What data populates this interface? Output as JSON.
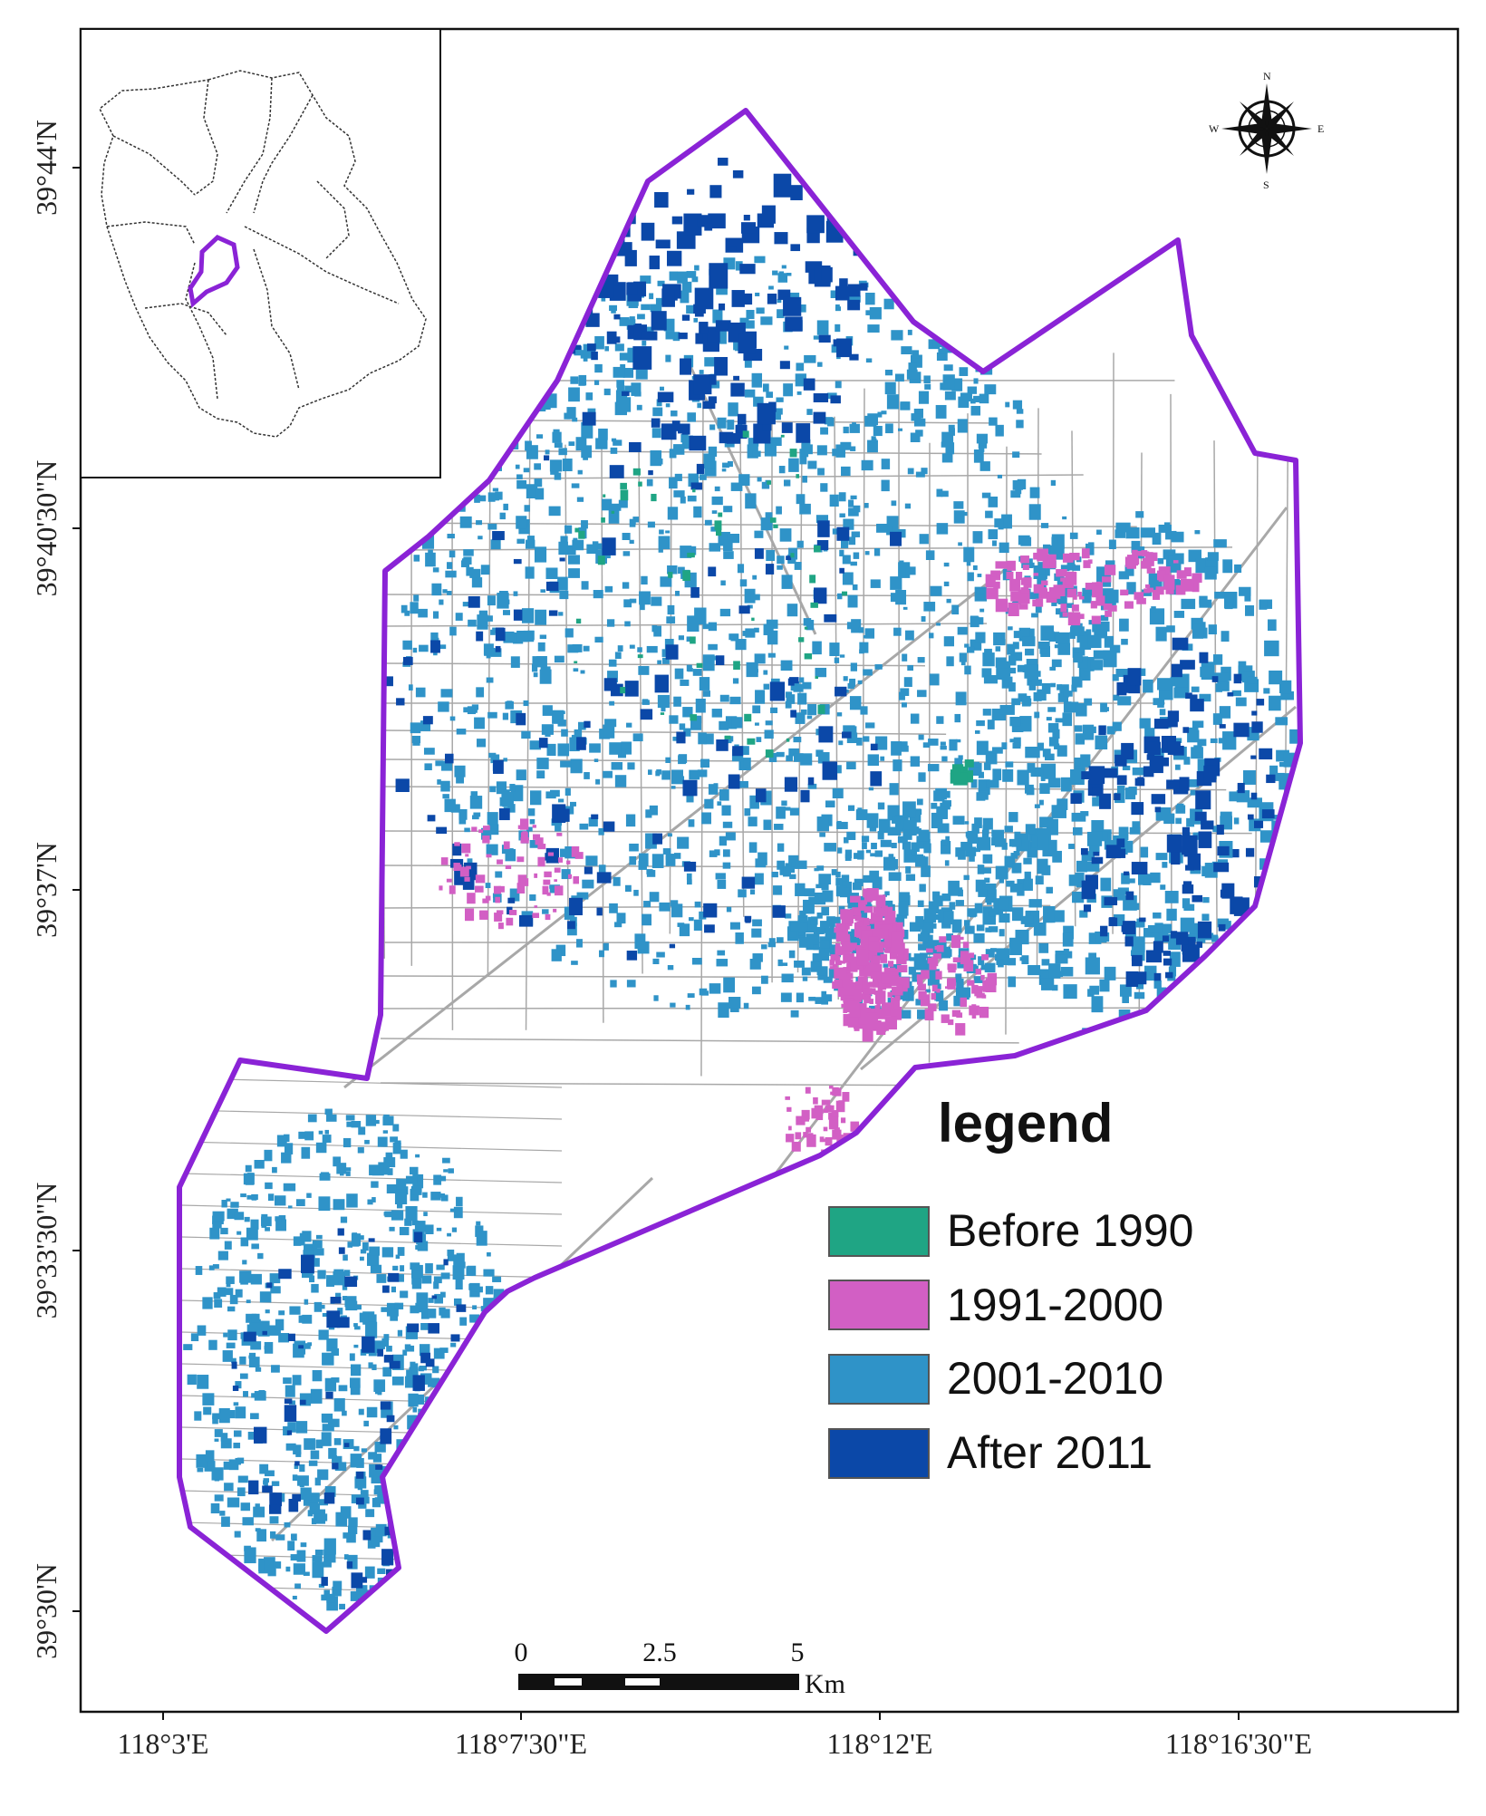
{
  "map": {
    "longitude_labels": [
      "118°3'E",
      "118°7'30\"E",
      "118°12'E",
      "118°16'30\"E"
    ],
    "latitude_labels": [
      "39°44'N",
      "39°40'30\"N",
      "39°37'N",
      "39°33'30\"N",
      "39°30'N"
    ],
    "compass": {
      "n": "N",
      "s": "S",
      "e": "E",
      "w": "W"
    },
    "scale_bar": {
      "labels": [
        "0",
        "2.5",
        "5"
      ],
      "unit": "Km"
    },
    "legend": {
      "title": "legend",
      "items": [
        {
          "label": "Before 1990",
          "color": "#1fa584"
        },
        {
          "label": "1991-2000",
          "color": "#d25fc4"
        },
        {
          "label": "2001-2010",
          "color": "#2f93c8"
        },
        {
          "label": "After 2011",
          "color": "#0b48a8"
        }
      ]
    },
    "boundary_color": "#8a23d6",
    "road_color": "#a8a8a8"
  }
}
